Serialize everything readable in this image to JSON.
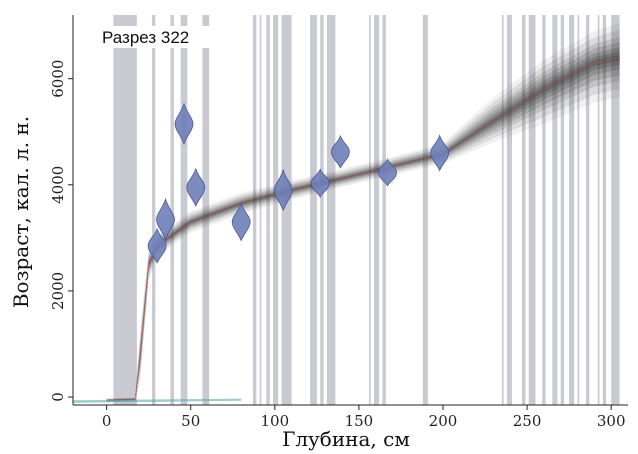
{
  "chart_data": {
    "type": "area",
    "title": "Разрез 322",
    "xlabel": "Глубина, см",
    "ylabel": "Возраст, кал. л. н.",
    "xlim": [
      -20,
      310
    ],
    "ylim": [
      -150,
      7200
    ],
    "x_ticks": [
      0,
      50,
      100,
      150,
      200,
      250,
      300
    ],
    "y_ticks": [
      0,
      2000,
      4000,
      6000
    ],
    "grid": false,
    "age_model": {
      "x": [
        0,
        17,
        20,
        25,
        30,
        50,
        80,
        110,
        140,
        170,
        200,
        230,
        260,
        290,
        305
      ],
      "mean": [
        -60,
        -40,
        800,
        2500,
        2850,
        3300,
        3650,
        3900,
        4120,
        4350,
        4580,
        5200,
        5800,
        6300,
        6400
      ],
      "lower": [
        -100,
        -80,
        300,
        2200,
        2650,
        3100,
        3450,
        3720,
        3960,
        4180,
        4400,
        4800,
        5150,
        5550,
        5650
      ],
      "upper": [
        -20,
        -10,
        1300,
        2800,
        3050,
        3500,
        3850,
        4080,
        4300,
        4530,
        4780,
        5650,
        6350,
        6900,
        7050
      ]
    },
    "dates": [
      {
        "depth": 30,
        "age": 2850,
        "spread": 320
      },
      {
        "depth": 35,
        "age": 3350,
        "spread": 380
      },
      {
        "depth": 46,
        "age": 5150,
        "spread": 380
      },
      {
        "depth": 53,
        "age": 3950,
        "spread": 350
      },
      {
        "depth": 80,
        "age": 3300,
        "spread": 350
      },
      {
        "depth": 105,
        "age": 3900,
        "spread": 380
      },
      {
        "depth": 127,
        "age": 4030,
        "spread": 260
      },
      {
        "depth": 139,
        "age": 4620,
        "spread": 300
      },
      {
        "depth": 167,
        "age": 4230,
        "spread": 250
      },
      {
        "depth": 198,
        "age": 4600,
        "spread": 330
      }
    ],
    "hiatus_bands": [
      [
        4,
        18
      ],
      [
        27,
        29
      ],
      [
        38,
        40
      ],
      [
        44,
        48
      ],
      [
        57,
        61
      ],
      [
        87,
        89
      ],
      [
        91,
        92
      ],
      [
        95,
        97
      ],
      [
        99,
        102
      ],
      [
        104,
        110
      ],
      [
        121,
        125
      ],
      [
        127,
        129
      ],
      [
        131,
        136
      ],
      [
        156,
        157
      ],
      [
        159,
        162
      ],
      [
        164,
        166
      ],
      [
        188,
        191
      ],
      [
        235,
        236
      ],
      [
        238,
        241
      ],
      [
        247,
        249
      ],
      [
        251,
        255
      ],
      [
        259,
        261
      ],
      [
        265,
        268
      ],
      [
        270,
        272
      ],
      [
        275,
        278
      ],
      [
        280,
        281
      ],
      [
        285,
        287
      ],
      [
        292,
        293
      ],
      [
        295,
        297
      ],
      [
        300,
        305
      ]
    ],
    "colors": {
      "band": "#c9cad1",
      "model": "#3a3a3a",
      "mean_line": "#e04040",
      "date": "#6f80b8",
      "date_edge": "#4a5a96",
      "surface": "#4fa3a8"
    }
  }
}
